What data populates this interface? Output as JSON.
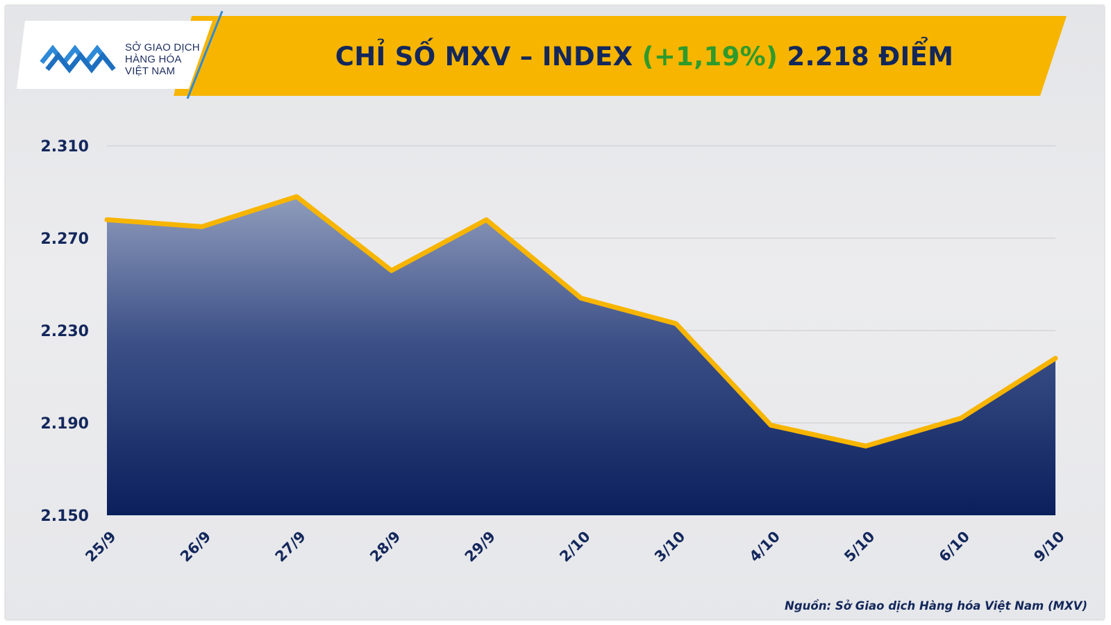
{
  "header": {
    "title_prefix": "CHỈ SỐ MXV – INDEX",
    "title_change": "(+1,19%)",
    "title_suffix": "2.218 ĐIỂM",
    "accent_color": "#f7b500",
    "change_color": "#2f9a2c"
  },
  "logo": {
    "line1": "SỞ GIAO DỊCH",
    "line2": "HÀNG HÓA",
    "line3": "VIỆT NAM",
    "tm": "™"
  },
  "chart_data": {
    "type": "area",
    "x": [
      "25/9",
      "26/9",
      "27/9",
      "28/9",
      "29/9",
      "2/10",
      "3/10",
      "4/10",
      "5/10",
      "6/10",
      "9/10"
    ],
    "values": [
      2278,
      2275,
      2288,
      2256,
      2278,
      2244,
      2233,
      2189,
      2180,
      2192,
      2218
    ],
    "ylim": [
      2150,
      2310
    ],
    "yticks": [
      2310,
      2270,
      2230,
      2190,
      2150
    ],
    "ytick_labels": [
      "2.310",
      "2.270",
      "2.230",
      "2.190",
      "2.150"
    ],
    "grid": true,
    "line_color": "#f7b500",
    "fill_top_color": "#8f9cbb",
    "fill_bottom_color": "#0a1f5c"
  },
  "source": "Nguồn: Sở Giao dịch Hàng hóa Việt Nam (MXV)"
}
